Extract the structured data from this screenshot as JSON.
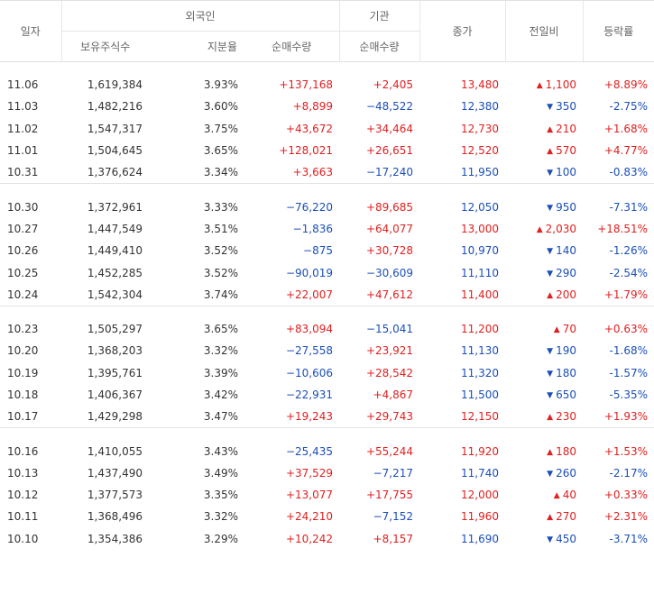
{
  "headers": {
    "date": "일자",
    "foreign": "외국인",
    "institution": "기관",
    "close": "종가",
    "change": "전일비",
    "rate": "등락률",
    "holdings": "보유주식수",
    "ratio": "지분율",
    "foreign_net": "순매수량",
    "inst_net": "순매수량"
  },
  "groups": [
    [
      {
        "date": "11.06",
        "holdings": "1,619,384",
        "ratio": "3.93%",
        "foreign_net": "+137,168",
        "inst_net": "+2,405",
        "close": "13,480",
        "dir": "up",
        "change": "1,100",
        "rate": "+8.89%"
      },
      {
        "date": "11.03",
        "holdings": "1,482,216",
        "ratio": "3.60%",
        "foreign_net": "+8,899",
        "inst_net": "−48,522",
        "close": "12,380",
        "dir": "down",
        "change": "350",
        "rate": "-2.75%"
      },
      {
        "date": "11.02",
        "holdings": "1,547,317",
        "ratio": "3.75%",
        "foreign_net": "+43,672",
        "inst_net": "+34,464",
        "close": "12,730",
        "dir": "up",
        "change": "210",
        "rate": "+1.68%"
      },
      {
        "date": "11.01",
        "holdings": "1,504,645",
        "ratio": "3.65%",
        "foreign_net": "+128,021",
        "inst_net": "+26,651",
        "close": "12,520",
        "dir": "up",
        "change": "570",
        "rate": "+4.77%"
      },
      {
        "date": "10.31",
        "holdings": "1,376,624",
        "ratio": "3.34%",
        "foreign_net": "+3,663",
        "inst_net": "−17,240",
        "close": "11,950",
        "dir": "down",
        "change": "100",
        "rate": "-0.83%"
      }
    ],
    [
      {
        "date": "10.30",
        "holdings": "1,372,961",
        "ratio": "3.33%",
        "foreign_net": "−76,220",
        "inst_net": "+89,685",
        "close": "12,050",
        "dir": "down",
        "change": "950",
        "rate": "-7.31%"
      },
      {
        "date": "10.27",
        "holdings": "1,447,549",
        "ratio": "3.51%",
        "foreign_net": "−1,836",
        "inst_net": "+64,077",
        "close": "13,000",
        "dir": "up",
        "change": "2,030",
        "rate": "+18.51%"
      },
      {
        "date": "10.26",
        "holdings": "1,449,410",
        "ratio": "3.52%",
        "foreign_net": "−875",
        "inst_net": "+30,728",
        "close": "10,970",
        "dir": "down",
        "change": "140",
        "rate": "-1.26%"
      },
      {
        "date": "10.25",
        "holdings": "1,452,285",
        "ratio": "3.52%",
        "foreign_net": "−90,019",
        "inst_net": "−30,609",
        "close": "11,110",
        "dir": "down",
        "change": "290",
        "rate": "-2.54%"
      },
      {
        "date": "10.24",
        "holdings": "1,542,304",
        "ratio": "3.74%",
        "foreign_net": "+22,007",
        "inst_net": "+47,612",
        "close": "11,400",
        "dir": "up",
        "change": "200",
        "rate": "+1.79%"
      }
    ],
    [
      {
        "date": "10.23",
        "holdings": "1,505,297",
        "ratio": "3.65%",
        "foreign_net": "+83,094",
        "inst_net": "−15,041",
        "close": "11,200",
        "dir": "up",
        "change": "70",
        "rate": "+0.63%"
      },
      {
        "date": "10.20",
        "holdings": "1,368,203",
        "ratio": "3.32%",
        "foreign_net": "−27,558",
        "inst_net": "+23,921",
        "close": "11,130",
        "dir": "down",
        "change": "190",
        "rate": "-1.68%"
      },
      {
        "date": "10.19",
        "holdings": "1,395,761",
        "ratio": "3.39%",
        "foreign_net": "−10,606",
        "inst_net": "+28,542",
        "close": "11,320",
        "dir": "down",
        "change": "180",
        "rate": "-1.57%"
      },
      {
        "date": "10.18",
        "holdings": "1,406,367",
        "ratio": "3.42%",
        "foreign_net": "−22,931",
        "inst_net": "+4,867",
        "close": "11,500",
        "dir": "down",
        "change": "650",
        "rate": "-5.35%"
      },
      {
        "date": "10.17",
        "holdings": "1,429,298",
        "ratio": "3.47%",
        "foreign_net": "+19,243",
        "inst_net": "+29,743",
        "close": "12,150",
        "dir": "up",
        "change": "230",
        "rate": "+1.93%"
      }
    ],
    [
      {
        "date": "10.16",
        "holdings": "1,410,055",
        "ratio": "3.43%",
        "foreign_net": "−25,435",
        "inst_net": "+55,244",
        "close": "11,920",
        "dir": "up",
        "change": "180",
        "rate": "+1.53%"
      },
      {
        "date": "10.13",
        "holdings": "1,437,490",
        "ratio": "3.49%",
        "foreign_net": "+37,529",
        "inst_net": "−7,217",
        "close": "11,740",
        "dir": "down",
        "change": "260",
        "rate": "-2.17%"
      },
      {
        "date": "10.12",
        "holdings": "1,377,573",
        "ratio": "3.35%",
        "foreign_net": "+13,077",
        "inst_net": "+17,755",
        "close": "12,000",
        "dir": "up",
        "change": "40",
        "rate": "+0.33%"
      },
      {
        "date": "10.11",
        "holdings": "1,368,496",
        "ratio": "3.32%",
        "foreign_net": "+24,210",
        "inst_net": "−7,152",
        "close": "11,960",
        "dir": "up",
        "change": "270",
        "rate": "+2.31%"
      },
      {
        "date": "10.10",
        "holdings": "1,354,386",
        "ratio": "3.29%",
        "foreign_net": "+10,242",
        "inst_net": "+8,157",
        "close": "11,690",
        "dir": "down",
        "change": "450",
        "rate": "-3.71%"
      }
    ]
  ],
  "colors": {
    "up": "#e01f1f",
    "down": "#1b4fb8"
  },
  "icons": {
    "up": "triangle-up-icon",
    "down": "triangle-down-icon"
  }
}
